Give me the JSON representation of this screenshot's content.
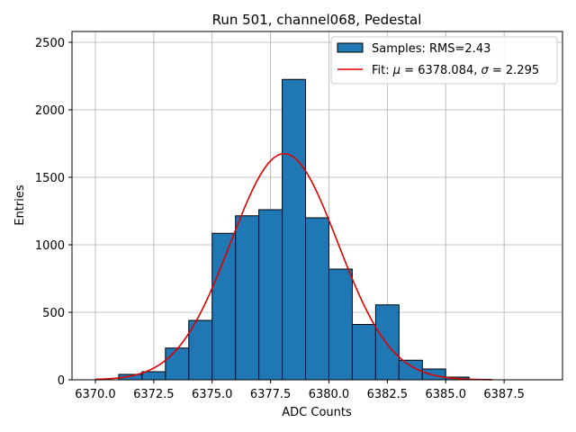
{
  "chart_data": {
    "type": "bar",
    "title": "Run 501, channel068, Pedestal",
    "xlabel": "ADC Counts",
    "ylabel": "Entries",
    "xlim": [
      6369.0,
      6390.0
    ],
    "ylim": [
      0,
      2580
    ],
    "grid": true,
    "legend_position": "top-right",
    "x_ticks": [
      6370.0,
      6372.5,
      6375.0,
      6377.5,
      6380.0,
      6382.5,
      6385.0,
      6387.5
    ],
    "x_tick_labels": [
      "6370.0",
      "6372.5",
      "6375.0",
      "6377.5",
      "6380.0",
      "6382.5",
      "6385.0",
      "6387.5"
    ],
    "y_ticks": [
      0,
      500,
      1000,
      1500,
      2000,
      2500
    ],
    "y_tick_labels": [
      "0",
      "500",
      "1000",
      "1500",
      "2000",
      "2500"
    ],
    "histogram": {
      "name": "Samples: RMS=2.43",
      "color": "#1f77b4",
      "bin_edges": [
        6371,
        6372,
        6373,
        6374,
        6375,
        6376,
        6377,
        6378,
        6379,
        6380,
        6381,
        6382,
        6383,
        6384,
        6385,
        6386
      ],
      "counts": [
        40,
        60,
        235,
        440,
        1085,
        1215,
        1260,
        2225,
        1200,
        820,
        410,
        555,
        145,
        80,
        20
      ]
    },
    "fit": {
      "name_prefix": "Fit: ",
      "mu_symbol": "μ",
      "sigma_symbol": "σ",
      "mu_value": "6378.084",
      "sigma_value": "2.295",
      "mu": 6378.084,
      "sigma": 2.295,
      "peak": 1675,
      "x_range": [
        6370,
        6387
      ],
      "color": "#e00000"
    },
    "legend": {
      "samples_label": "Samples: RMS=2.43",
      "fit_prefix": "Fit: ",
      "fit_mu": "μ",
      "fit_eq1": " = 6378.084, ",
      "fit_sigma": "σ",
      "fit_eq2": " = 2.295"
    }
  }
}
